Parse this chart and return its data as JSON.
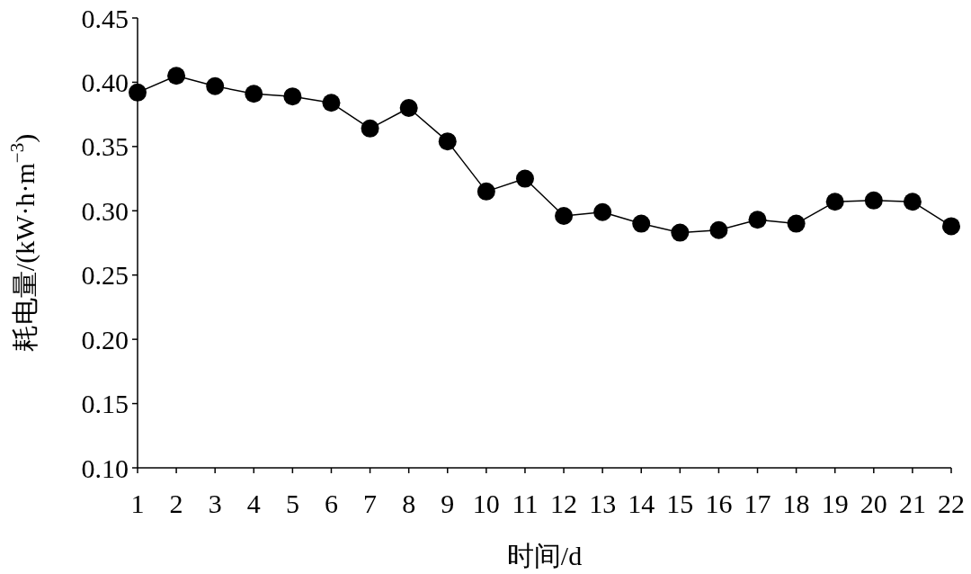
{
  "chart_data": {
    "type": "line",
    "xlabel": "时间/d",
    "ylabel": "耗电量/(kW·h·m$^{−3}$)",
    "x": [
      1,
      2,
      3,
      4,
      5,
      6,
      7,
      8,
      9,
      10,
      11,
      12,
      13,
      14,
      15,
      16,
      17,
      18,
      19,
      20,
      21,
      22
    ],
    "series": [
      {
        "color": "#000000",
        "values": [
          0.392,
          0.405,
          0.397,
          0.391,
          0.389,
          0.384,
          0.364,
          0.38,
          0.354,
          0.315,
          0.325,
          0.296,
          0.299,
          0.29,
          0.283,
          0.285,
          0.293,
          0.29,
          0.307,
          0.308,
          0.307,
          0.288
        ]
      }
    ],
    "xlim": [
      1,
      22
    ],
    "xticks": [
      1,
      2,
      3,
      4,
      5,
      6,
      7,
      8,
      9,
      10,
      11,
      12,
      13,
      14,
      15,
      16,
      17,
      18,
      19,
      20,
      21,
      22
    ],
    "ylim": [
      0.1,
      0.45
    ],
    "yticks": [
      {
        "value": 0.1,
        "label": "0.10"
      },
      {
        "value": 0.15,
        "label": "0.15"
      },
      {
        "value": 0.2,
        "label": "0.20"
      },
      {
        "value": 0.25,
        "label": "0.25"
      },
      {
        "value": 0.3,
        "label": "0.30"
      },
      {
        "value": 0.35,
        "label": "0.35"
      },
      {
        "value": 0.4,
        "label": "0.40"
      },
      {
        "value": 0.45,
        "label": "0.45"
      }
    ],
    "marker": "circle",
    "line_style": "solid",
    "grid": false
  }
}
